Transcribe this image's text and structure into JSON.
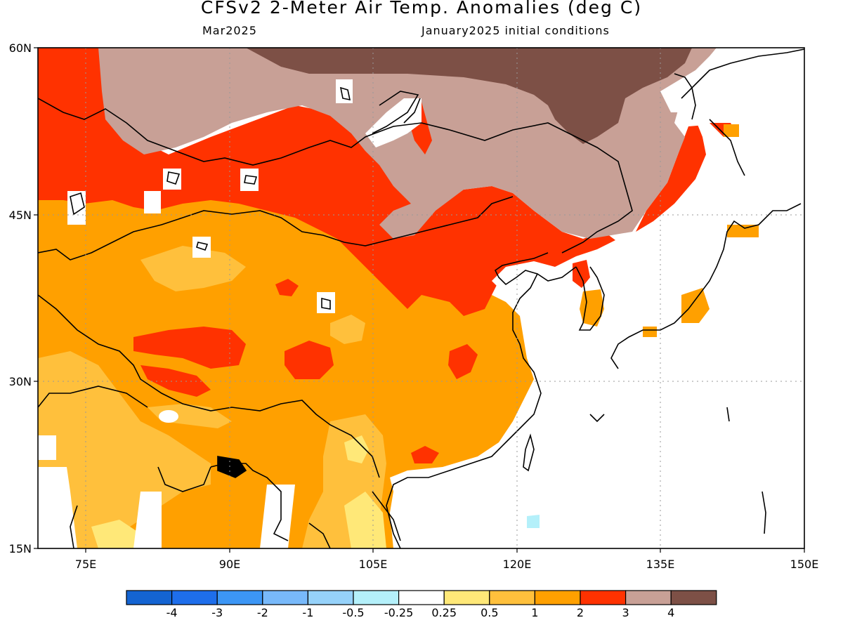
{
  "title": "CFSv2 2-Meter Air Temp. Anomalies (deg C)",
  "valid_month": "Mar2025",
  "initial_conditions": "January2025 initial conditions",
  "map": {
    "lon_range": [
      70,
      150
    ],
    "lat_range": [
      15,
      60
    ],
    "lon_ticks": [
      "75E",
      "90E",
      "105E",
      "120E",
      "135E",
      "150E"
    ],
    "lat_ticks": [
      "60N",
      "45N",
      "30N",
      "15N"
    ],
    "projection": "lat-lon",
    "dotted_grid": true
  },
  "legend": {
    "labels": [
      "-4",
      "-3",
      "-2",
      "-1",
      "-0.5",
      "-0.25",
      "0.25",
      "0.5",
      "1",
      "2",
      "3",
      "4"
    ],
    "colors": [
      "#1464d2",
      "#1e6eeb",
      "#3c96f5",
      "#78b9fa",
      "#96d2fa",
      "#b4f0fa",
      "#ffffff",
      "#ffe878",
      "#ffc03c",
      "#ffa000",
      "#ff3200",
      "#c8a096",
      "#7d5046"
    ]
  },
  "anomaly_colors": {
    "light_yellow": "#ffe878",
    "light_orange": "#ffc03c",
    "orange": "#ffa000",
    "red": "#ff3200",
    "tan": "#c8a096",
    "brown": "#7d5046",
    "light_blue": "#b4f0fa"
  }
}
